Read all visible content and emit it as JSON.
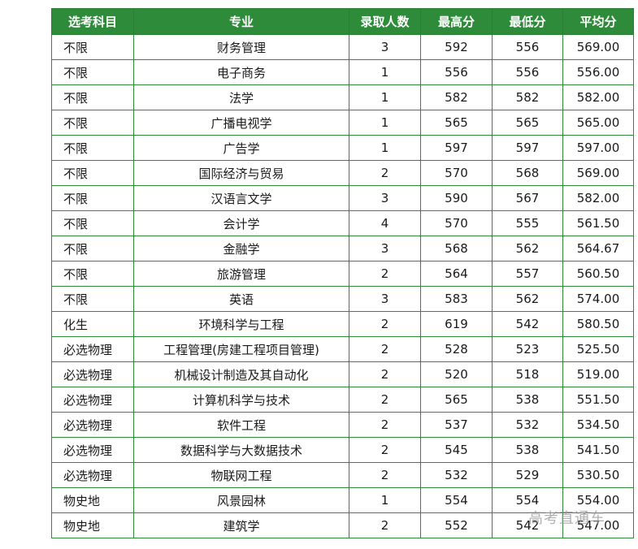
{
  "table": {
    "headers": [
      "选考科目",
      "专业",
      "录取人数",
      "最高分",
      "最低分",
      "平均分"
    ],
    "rows": [
      [
        "不限",
        "财务管理",
        "3",
        "592",
        "556",
        "569.00"
      ],
      [
        "不限",
        "电子商务",
        "1",
        "556",
        "556",
        "556.00"
      ],
      [
        "不限",
        "法学",
        "1",
        "582",
        "582",
        "582.00"
      ],
      [
        "不限",
        "广播电视学",
        "1",
        "565",
        "565",
        "565.00"
      ],
      [
        "不限",
        "广告学",
        "1",
        "597",
        "597",
        "597.00"
      ],
      [
        "不限",
        "国际经济与贸易",
        "2",
        "570",
        "568",
        "569.00"
      ],
      [
        "不限",
        "汉语言文学",
        "3",
        "590",
        "567",
        "582.00"
      ],
      [
        "不限",
        "会计学",
        "4",
        "570",
        "555",
        "561.50"
      ],
      [
        "不限",
        "金融学",
        "3",
        "568",
        "562",
        "564.67"
      ],
      [
        "不限",
        "旅游管理",
        "2",
        "564",
        "557",
        "560.50"
      ],
      [
        "不限",
        "英语",
        "3",
        "583",
        "562",
        "574.00"
      ],
      [
        "化生",
        "环境科学与工程",
        "2",
        "619",
        "542",
        "580.50"
      ],
      [
        "必选物理",
        "工程管理(房建工程项目管理)",
        "2",
        "528",
        "523",
        "525.50"
      ],
      [
        "必选物理",
        "机械设计制造及其自动化",
        "2",
        "520",
        "518",
        "519.00"
      ],
      [
        "必选物理",
        "计算机科学与技术",
        "2",
        "565",
        "538",
        "551.50"
      ],
      [
        "必选物理",
        "软件工程",
        "2",
        "537",
        "532",
        "534.50"
      ],
      [
        "必选物理",
        "数据科学与大数据技术",
        "2",
        "545",
        "538",
        "541.50"
      ],
      [
        "必选物理",
        "物联网工程",
        "2",
        "532",
        "529",
        "530.50"
      ],
      [
        "物史地",
        "风景园林",
        "1",
        "554",
        "554",
        "554.00"
      ],
      [
        "物史地",
        "建筑学",
        "2",
        "552",
        "542",
        "547.00"
      ]
    ]
  },
  "watermark": "高考直通车",
  "colors": {
    "header_bg": "#2e8b3a",
    "header_text": "#ffffff",
    "border": "#2e8b3a"
  }
}
